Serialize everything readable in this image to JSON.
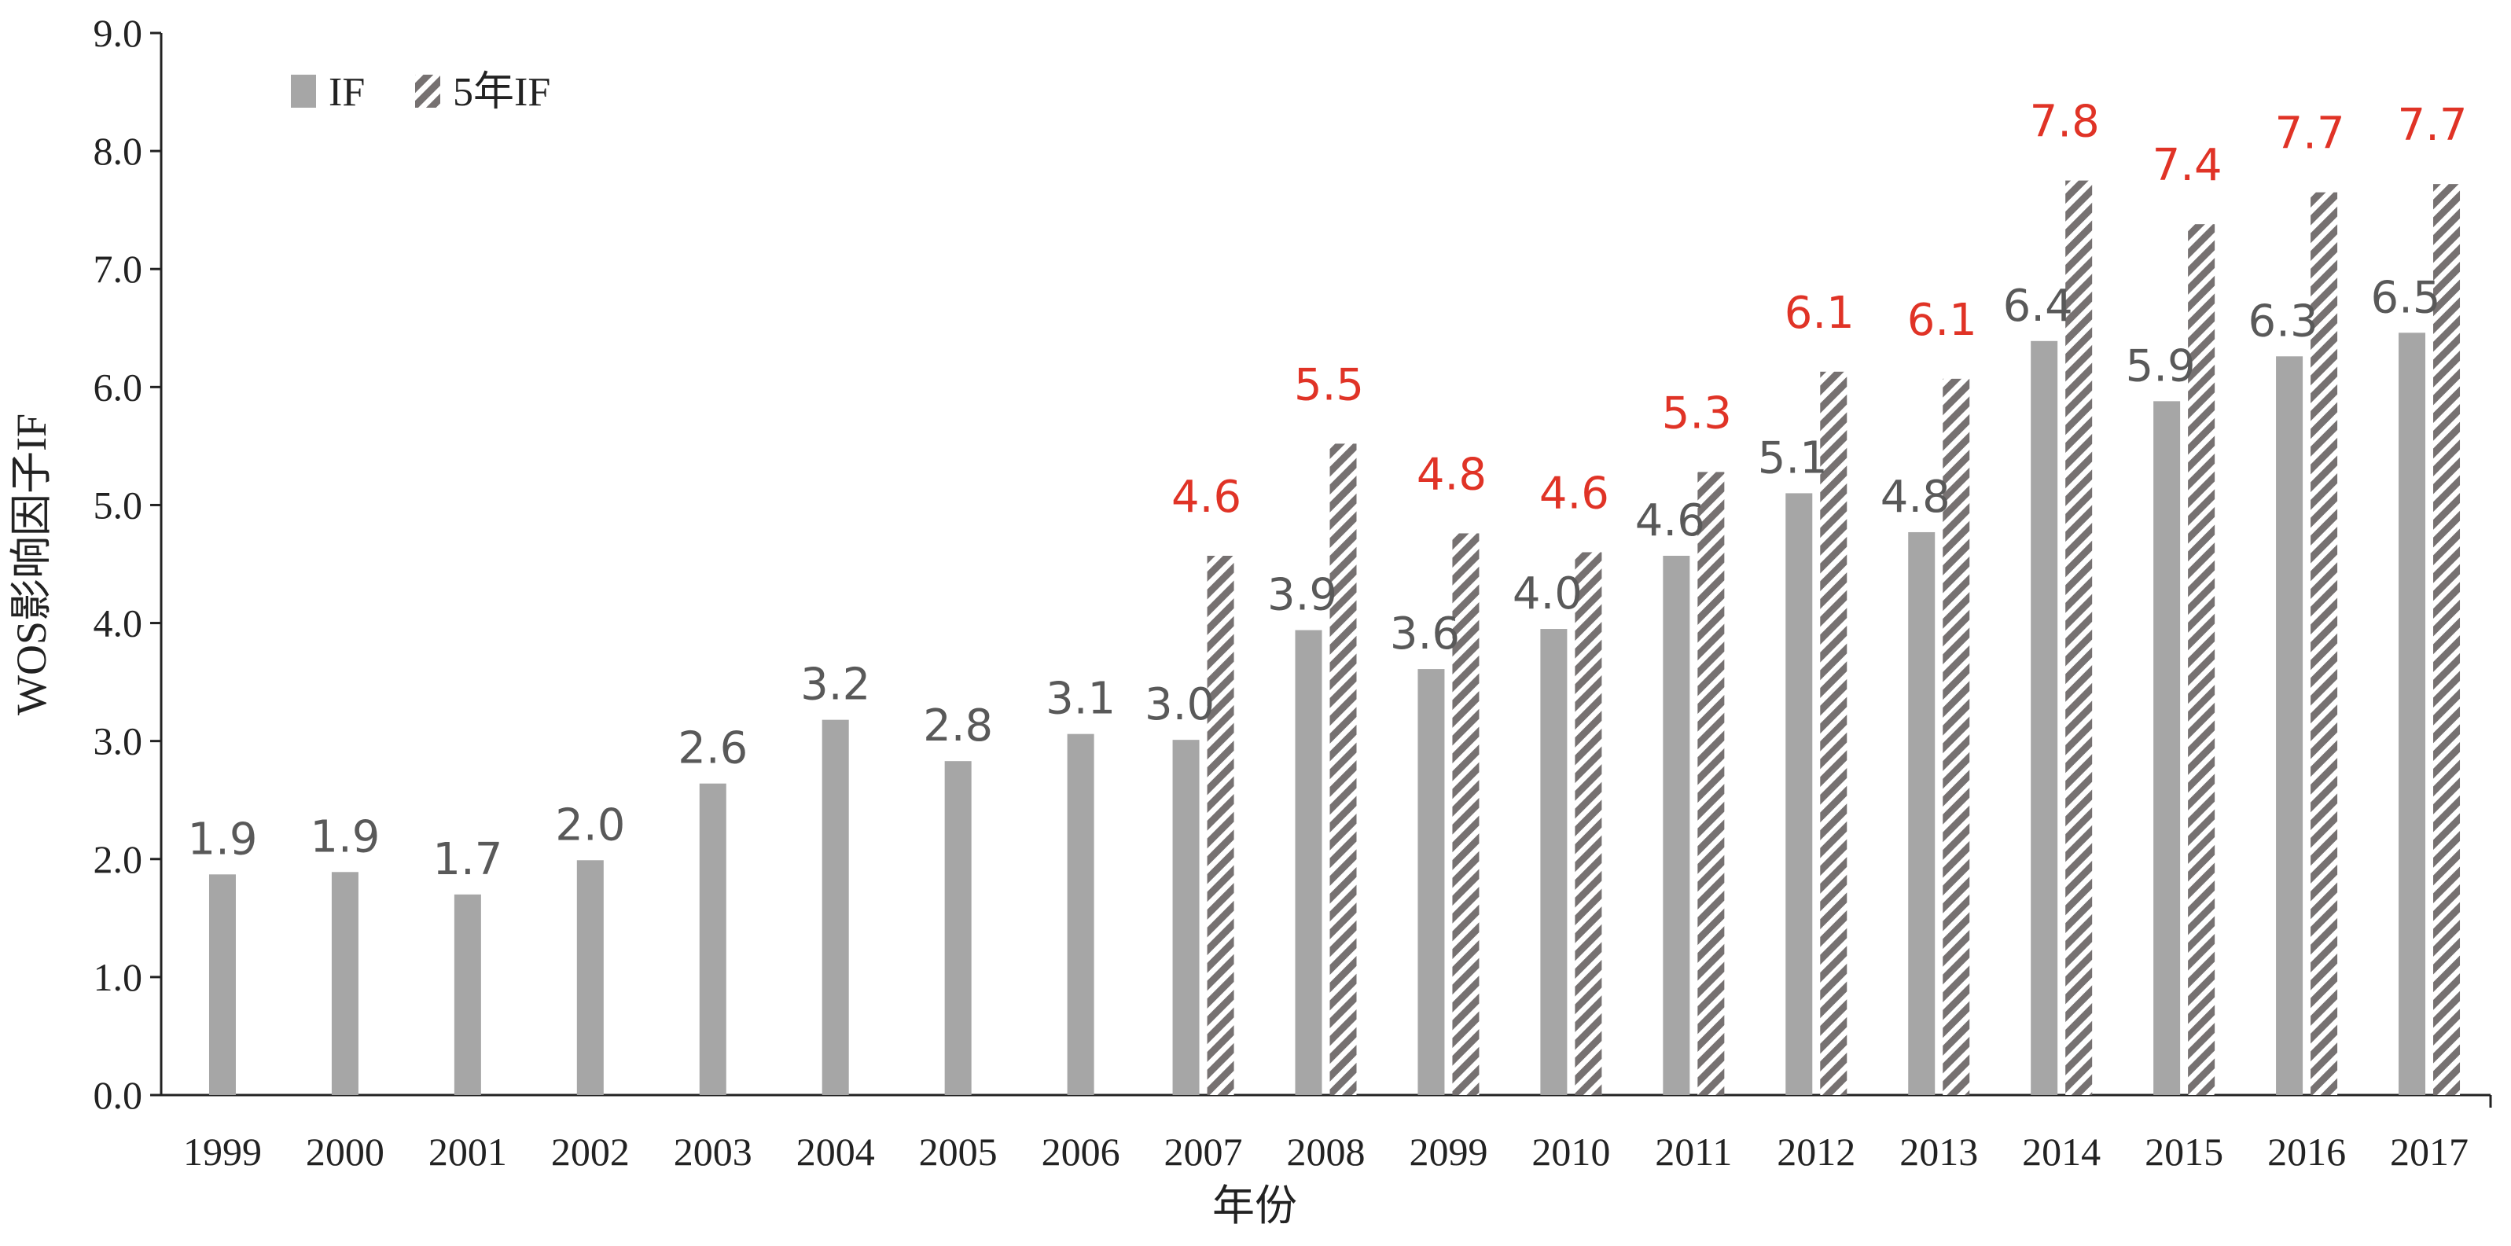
{
  "chart_data": {
    "type": "bar",
    "xlabel": "年份",
    "ylabel": "WOS影响因子IF",
    "ylim": [
      0,
      9
    ],
    "yticks": [
      "0.0",
      "1.0",
      "2.0",
      "3.0",
      "4.0",
      "5.0",
      "6.0",
      "7.0",
      "8.0",
      "9.0"
    ],
    "grid": false,
    "legend_position": "top-left",
    "categories": [
      "1999",
      "2000",
      "2001",
      "2002",
      "2003",
      "2004",
      "2005",
      "2006",
      "2007",
      "2008",
      "2099",
      "2010",
      "2011",
      "2012",
      "2013",
      "2014",
      "2015",
      "2016",
      "2017"
    ],
    "series": [
      {
        "name": "IF",
        "color": "#a6a6a6",
        "pattern": "solid",
        "label_color": "#595959",
        "values": [
          1.87,
          1.89,
          1.7,
          1.99,
          2.64,
          3.18,
          2.83,
          3.06,
          3.01,
          3.94,
          3.61,
          3.95,
          4.57,
          5.1,
          4.77,
          6.39,
          5.88,
          6.26,
          6.46
        ],
        "labels": [
          "1.9",
          "1.9",
          "1.7",
          "2.0",
          "2.6",
          "3.2",
          "2.8",
          "3.1",
          "3.0",
          "3.9",
          "3.6",
          "4.0",
          "4.6",
          "5.1",
          "4.8",
          "6.4",
          "5.9",
          "6.3",
          "6.5"
        ]
      },
      {
        "name": "5年IF",
        "color": "#767171",
        "pattern": "diagonal-stripes",
        "label_color": "#e03326",
        "values": [
          null,
          null,
          null,
          null,
          null,
          null,
          null,
          null,
          4.57,
          5.52,
          4.76,
          4.6,
          5.28,
          6.13,
          6.07,
          7.75,
          7.38,
          7.65,
          7.72
        ],
        "labels": [
          null,
          null,
          null,
          null,
          null,
          null,
          null,
          null,
          "4.6",
          "5.5",
          "4.8",
          "4.6",
          "5.3",
          "6.1",
          "6.1",
          "7.8",
          "7.4",
          "7.7",
          "7.7"
        ]
      }
    ]
  }
}
